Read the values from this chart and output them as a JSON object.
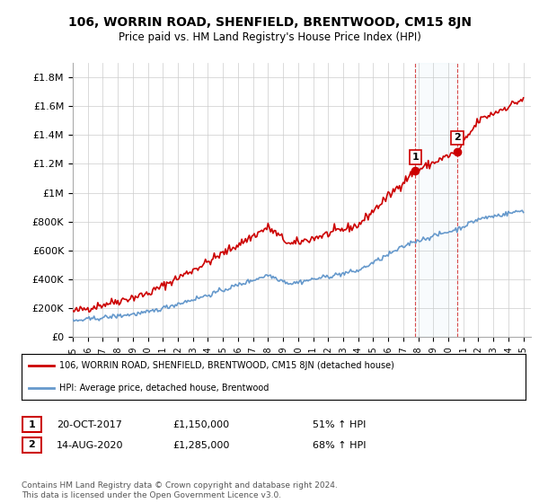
{
  "title": "106, WORRIN ROAD, SHENFIELD, BRENTWOOD, CM15 8JN",
  "subtitle": "Price paid vs. HM Land Registry's House Price Index (HPI)",
  "ylabel_ticks": [
    "£0",
    "£200K",
    "£400K",
    "£600K",
    "£800K",
    "£1M",
    "£1.2M",
    "£1.4M",
    "£1.6M",
    "£1.8M"
  ],
  "ytick_values": [
    0,
    200000,
    400000,
    600000,
    800000,
    1000000,
    1200000,
    1400000,
    1600000,
    1800000
  ],
  "ylim": [
    0,
    1900000
  ],
  "xlim_start": 1995.0,
  "xlim_end": 2025.5,
  "red_line_color": "#cc0000",
  "blue_line_color": "#6699cc",
  "point1_x": 2017.8,
  "point1_y": 1150000,
  "point2_x": 2020.6,
  "point2_y": 1285000,
  "vline1_x": 2017.8,
  "vline2_x": 2020.6,
  "legend_red_label": "106, WORRIN ROAD, SHENFIELD, BRENTWOOD, CM15 8JN (detached house)",
  "legend_blue_label": "HPI: Average price, detached house, Brentwood",
  "annotation1_date": "20-OCT-2017",
  "annotation1_price": "£1,150,000",
  "annotation1_hpi": "51% ↑ HPI",
  "annotation2_date": "14-AUG-2020",
  "annotation2_price": "£1,285,000",
  "annotation2_hpi": "68% ↑ HPI",
  "footer": "Contains HM Land Registry data © Crown copyright and database right 2024.\nThis data is licensed under the Open Government Licence v3.0.",
  "grid_color": "#cccccc"
}
